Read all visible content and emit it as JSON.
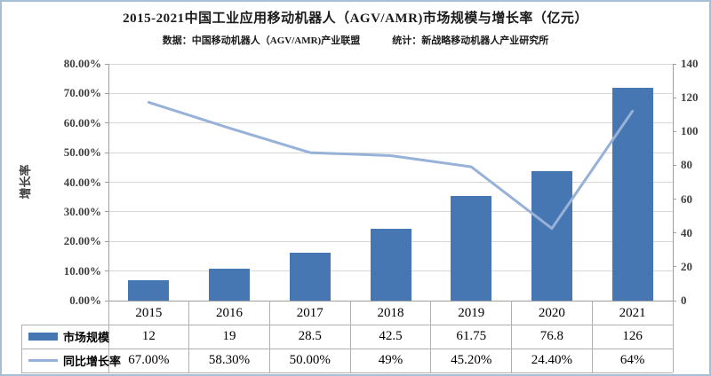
{
  "title": "2015-2021中国工业应用移动机器人（AGV/AMR)市场规模与增长率（亿元）",
  "subtitle": {
    "source": "数据：中国移动机器人（AGV/AMR)产业联盟",
    "stats": "统计：新战略移动机器人产业研究所"
  },
  "chart_data": {
    "type": "combo-bar-line",
    "categories": [
      "2015",
      "2016",
      "2017",
      "2018",
      "2019",
      "2020",
      "2021"
    ],
    "series": [
      {
        "name": "市场规模",
        "type": "bar",
        "axis": "right",
        "color": "#4777b2",
        "values": [
          12,
          19,
          28.5,
          42.5,
          61.75,
          76.8,
          126
        ],
        "labels": [
          "12",
          "19",
          "28.5",
          "42.5",
          "61.75",
          "76.8",
          "126"
        ]
      },
      {
        "name": "同比增长率",
        "type": "line",
        "axis": "left",
        "color": "#97b1d8",
        "values": [
          67,
          58.3,
          50,
          49,
          45.2,
          24.4,
          64
        ],
        "labels": [
          "67.00%",
          "58.30%",
          "50.00%",
          "49%",
          "45.20%",
          "24.40%",
          "64%"
        ]
      }
    ],
    "left_axis": {
      "title": "增长率",
      "min": 0,
      "max": 80,
      "step": 10,
      "tick_labels": [
        "0.00%",
        "10.00%",
        "20.00%",
        "30.00%",
        "40.00%",
        "50.00%",
        "60.00%",
        "70.00%",
        "80.00%"
      ]
    },
    "right_axis": {
      "min": 0,
      "max": 140,
      "step": 20,
      "tick_labels": [
        "0",
        "20",
        "40",
        "60",
        "80",
        "100",
        "120",
        "140"
      ]
    },
    "grid": "horizontal-only",
    "legend_position": "data-table-left-column"
  },
  "colors": {
    "bar": "#4777b2",
    "line": "#97b1d8",
    "grid": "#d7d7d7",
    "axis": "#9e9e9e",
    "table_border": "#b0b0b0",
    "tick_text": "#3f3f3f",
    "frame_border": "#a6bfd7"
  }
}
